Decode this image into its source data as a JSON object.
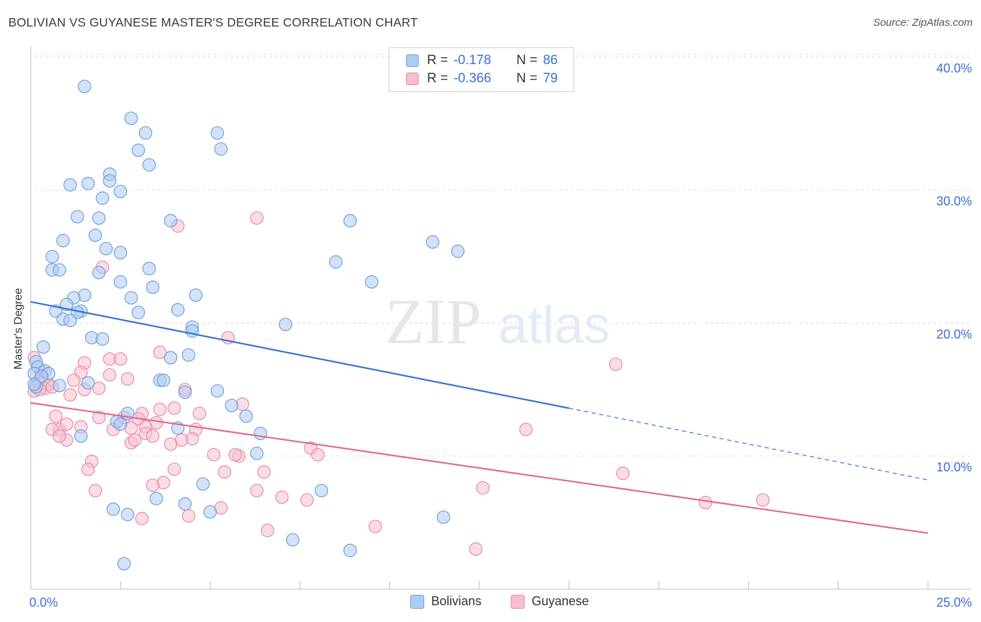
{
  "header": {
    "title": "BOLIVIAN VS GUYANESE MASTER'S DEGREE CORRELATION CHART",
    "source": "Source: ZipAtlas.com"
  },
  "legend": {
    "rows": [
      {
        "r_label": "R =",
        "r_value": "-0.178",
        "n_label": "N =",
        "n_value": "86"
      },
      {
        "r_label": "R =",
        "r_value": "-0.366",
        "n_label": "N =",
        "n_value": "79"
      }
    ]
  },
  "bottom_legend": {
    "bolivians": "Bolivians",
    "guyanese": "Guyanese"
  },
  "watermark": {
    "zip": "ZIP",
    "atlas": "atlas"
  },
  "colors": {
    "bolivian_fill": "#aecbf0",
    "bolivian_stroke": "#6f9fdc",
    "bolivian_line": "#3373d0",
    "guyanese_fill": "#f6bfd0",
    "guyanese_stroke": "#e88aa8",
    "guyanese_line": "#e0698f",
    "axis_text": "#3a6fd0",
    "grid": "#dddddd"
  },
  "chart_data": {
    "type": "scatter",
    "title": "BOLIVIAN VS GUYANESE MASTER'S DEGREE CORRELATION CHART",
    "xlabel": "",
    "ylabel": "Master's Degree",
    "xlim": [
      0,
      25
    ],
    "ylim": [
      0,
      42
    ],
    "x_tick_labels": [
      "0.0%",
      "25.0%"
    ],
    "y_ticks": [
      10,
      20,
      30,
      40
    ],
    "y_tick_labels": [
      "10.0%",
      "20.0%",
      "30.0%",
      "40.0%"
    ],
    "grid": true,
    "series": [
      {
        "name": "Bolivians",
        "r": -0.178,
        "n": 86,
        "trend": {
          "x0": 0,
          "y0": 21.6,
          "x1": 15,
          "y1": 13.6,
          "dashed_to_x": 25,
          "dashed_to_y": 8.2
        },
        "points": [
          [
            1.5,
            37.8
          ],
          [
            2.8,
            35.4
          ],
          [
            3.2,
            34.3
          ],
          [
            5.2,
            34.3
          ],
          [
            3.0,
            33.0
          ],
          [
            5.3,
            33.1
          ],
          [
            3.3,
            31.9
          ],
          [
            2.2,
            31.2
          ],
          [
            2.2,
            30.7
          ],
          [
            1.1,
            30.4
          ],
          [
            1.6,
            30.5
          ],
          [
            2.5,
            29.9
          ],
          [
            2.0,
            29.4
          ],
          [
            1.3,
            28.0
          ],
          [
            1.9,
            27.9
          ],
          [
            3.9,
            27.7
          ],
          [
            8.9,
            27.7
          ],
          [
            1.8,
            26.6
          ],
          [
            0.9,
            26.2
          ],
          [
            11.2,
            26.1
          ],
          [
            2.1,
            25.6
          ],
          [
            11.9,
            25.4
          ],
          [
            2.5,
            25.3
          ],
          [
            0.6,
            25.0
          ],
          [
            8.5,
            24.6
          ],
          [
            0.6,
            24.0
          ],
          [
            0.8,
            24.0
          ],
          [
            3.3,
            24.1
          ],
          [
            1.9,
            23.8
          ],
          [
            2.5,
            23.1
          ],
          [
            9.5,
            23.1
          ],
          [
            3.4,
            22.7
          ],
          [
            1.5,
            22.1
          ],
          [
            4.6,
            22.1
          ],
          [
            1.2,
            21.9
          ],
          [
            2.8,
            21.9
          ],
          [
            1.0,
            21.4
          ],
          [
            0.7,
            20.9
          ],
          [
            1.4,
            20.9
          ],
          [
            4.1,
            21.0
          ],
          [
            3.0,
            20.8
          ],
          [
            1.3,
            20.8
          ],
          [
            0.9,
            20.3
          ],
          [
            1.1,
            20.2
          ],
          [
            7.1,
            19.9
          ],
          [
            4.5,
            19.7
          ],
          [
            4.5,
            19.4
          ],
          [
            1.7,
            18.9
          ],
          [
            2.0,
            18.8
          ],
          [
            0.35,
            18.2
          ],
          [
            3.9,
            17.4
          ],
          [
            4.4,
            17.6
          ],
          [
            0.15,
            17.1
          ],
          [
            0.2,
            16.7
          ],
          [
            0.4,
            16.4
          ],
          [
            0.1,
            16.2
          ],
          [
            0.5,
            16.2
          ],
          [
            0.3,
            16.0
          ],
          [
            3.6,
            15.7
          ],
          [
            3.7,
            15.7
          ],
          [
            1.6,
            15.5
          ],
          [
            0.8,
            15.3
          ],
          [
            0.15,
            15.2
          ],
          [
            5.2,
            14.9
          ],
          [
            4.3,
            14.8
          ],
          [
            5.6,
            13.8
          ],
          [
            2.7,
            13.2
          ],
          [
            6.0,
            13.0
          ],
          [
            2.4,
            12.6
          ],
          [
            2.5,
            12.4
          ],
          [
            4.1,
            12.1
          ],
          [
            6.4,
            11.7
          ],
          [
            1.4,
            11.5
          ],
          [
            6.3,
            10.2
          ],
          [
            4.8,
            7.9
          ],
          [
            8.1,
            7.4
          ],
          [
            3.5,
            6.8
          ],
          [
            4.3,
            6.4
          ],
          [
            2.3,
            6.0
          ],
          [
            2.7,
            5.6
          ],
          [
            5.0,
            5.8
          ],
          [
            11.5,
            5.4
          ],
          [
            7.3,
            3.7
          ],
          [
            8.9,
            2.9
          ],
          [
            2.6,
            1.9
          ],
          [
            0.1,
            15.4
          ]
        ]
      },
      {
        "name": "Guyanese",
        "r": -0.366,
        "n": 79,
        "trend": {
          "x0": 0,
          "y0": 14.0,
          "x1": 25,
          "y1": 4.2
        },
        "points": [
          [
            6.3,
            27.9
          ],
          [
            4.1,
            27.3
          ],
          [
            2.0,
            24.2
          ],
          [
            3.6,
            17.8
          ],
          [
            1.5,
            17.0
          ],
          [
            2.2,
            17.3
          ],
          [
            2.5,
            17.3
          ],
          [
            16.3,
            16.9
          ],
          [
            0.1,
            17.4
          ],
          [
            0.3,
            16.3
          ],
          [
            1.4,
            16.3
          ],
          [
            2.2,
            16.1
          ],
          [
            2.7,
            15.8
          ],
          [
            1.2,
            15.7
          ],
          [
            0.5,
            15.4
          ],
          [
            1.9,
            15.1
          ],
          [
            4.3,
            15.0
          ],
          [
            1.5,
            15.0
          ],
          [
            0.4,
            15.1
          ],
          [
            0.1,
            14.9
          ],
          [
            0.2,
            15.6
          ],
          [
            5.9,
            13.9
          ],
          [
            4.0,
            13.6
          ],
          [
            4.7,
            13.2
          ],
          [
            5.5,
            18.9
          ],
          [
            3.1,
            13.2
          ],
          [
            2.6,
            12.9
          ],
          [
            3.0,
            12.8
          ],
          [
            0.7,
            13.0
          ],
          [
            3.5,
            12.5
          ],
          [
            0.8,
            12.0
          ],
          [
            1.0,
            12.4
          ],
          [
            1.4,
            12.2
          ],
          [
            2.3,
            12.0
          ],
          [
            2.8,
            12.1
          ],
          [
            3.2,
            12.2
          ],
          [
            4.6,
            12.0
          ],
          [
            13.8,
            12.0
          ],
          [
            0.6,
            12.0
          ],
          [
            1.0,
            11.2
          ],
          [
            3.2,
            11.7
          ],
          [
            0.8,
            11.5
          ],
          [
            3.4,
            11.5
          ],
          [
            4.5,
            11.3
          ],
          [
            4.2,
            11.2
          ],
          [
            2.8,
            11.0
          ],
          [
            3.9,
            10.9
          ],
          [
            7.8,
            10.6
          ],
          [
            8.0,
            10.1
          ],
          [
            5.1,
            10.1
          ],
          [
            5.8,
            10.0
          ],
          [
            5.7,
            10.1
          ],
          [
            1.7,
            9.6
          ],
          [
            4.0,
            9.0
          ],
          [
            1.6,
            9.0
          ],
          [
            6.5,
            8.8
          ],
          [
            5.4,
            8.8
          ],
          [
            16.5,
            8.7
          ],
          [
            3.7,
            8.0
          ],
          [
            3.4,
            7.8
          ],
          [
            12.6,
            7.6
          ],
          [
            1.8,
            7.4
          ],
          [
            6.3,
            7.4
          ],
          [
            7.0,
            6.9
          ],
          [
            7.7,
            6.7
          ],
          [
            18.8,
            6.5
          ],
          [
            20.4,
            6.7
          ],
          [
            5.3,
            6.1
          ],
          [
            4.4,
            5.5
          ],
          [
            3.1,
            5.3
          ],
          [
            9.6,
            4.7
          ],
          [
            6.6,
            4.4
          ],
          [
            12.4,
            3.0
          ],
          [
            0.25,
            15.0
          ],
          [
            0.6,
            15.2
          ],
          [
            1.1,
            14.6
          ],
          [
            1.9,
            12.9
          ],
          [
            3.6,
            13.5
          ],
          [
            2.9,
            11.2
          ]
        ]
      }
    ]
  }
}
